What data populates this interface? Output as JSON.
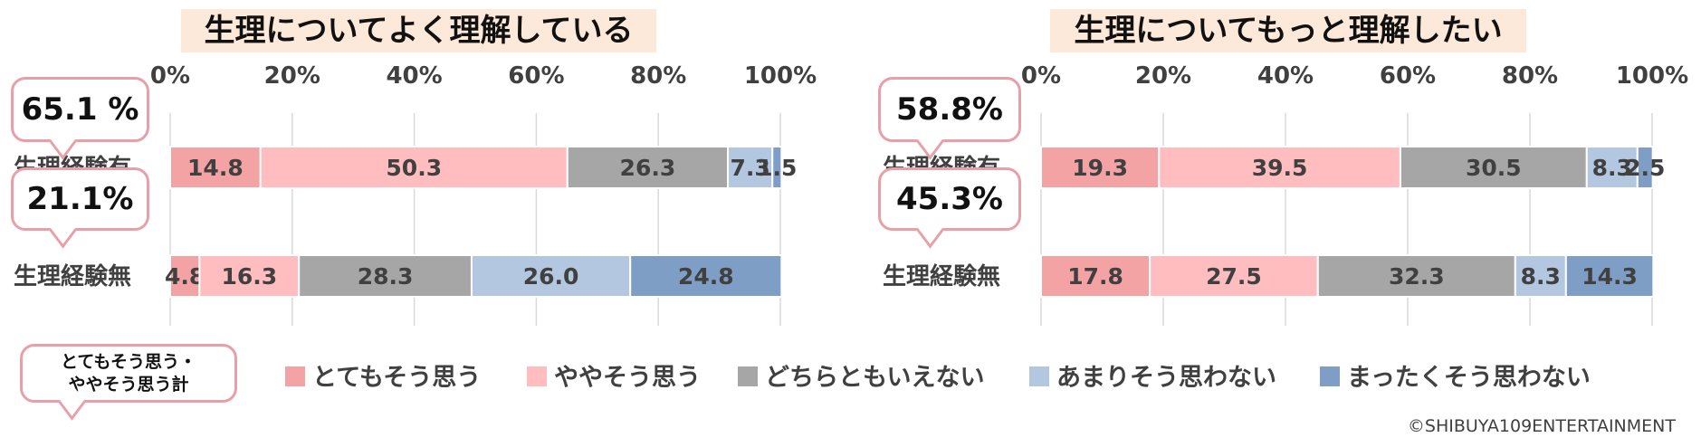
{
  "chart_data": [
    {
      "type": "bar",
      "title": "生理についてよく理解している",
      "x_ticks": [
        "0%",
        "20%",
        "40%",
        "60%",
        "80%",
        "100%"
      ],
      "xlim": [
        0,
        100
      ],
      "categories": [
        "生理経験有",
        "生理経験無"
      ],
      "series": [
        {
          "name": "とてもそう思う",
          "values": [
            14.8,
            4.8
          ]
        },
        {
          "name": "ややそう思う",
          "values": [
            50.3,
            16.3
          ]
        },
        {
          "name": "どちらともいえない",
          "values": [
            26.3,
            28.3
          ]
        },
        {
          "name": "あまりそう思わない",
          "values": [
            7.3,
            26.0
          ]
        },
        {
          "name": "まったくそう思わない",
          "values": [
            1.5,
            24.8
          ]
        }
      ],
      "value_labels": [
        [
          "14.8",
          "50.3",
          "26.3",
          "7.3",
          "1.5"
        ],
        [
          "4.8",
          "16.3",
          "28.3",
          "26.0",
          "24.8"
        ]
      ],
      "callouts": [
        "65.1 %",
        "21.1%"
      ]
    },
    {
      "type": "bar",
      "title": "生理についてもっと理解したい",
      "x_ticks": [
        "0%",
        "20%",
        "40%",
        "60%",
        "80%",
        "100%"
      ],
      "xlim": [
        0,
        100
      ],
      "categories": [
        "生理経験有",
        "生理経験無"
      ],
      "series": [
        {
          "name": "とてもそう思う",
          "values": [
            19.3,
            17.8
          ]
        },
        {
          "name": "ややそう思う",
          "values": [
            39.5,
            27.5
          ]
        },
        {
          "name": "どちらともいえない",
          "values": [
            30.5,
            32.3
          ]
        },
        {
          "name": "あまりそう思わない",
          "values": [
            8.3,
            8.3
          ]
        },
        {
          "name": "まったくそう思わない",
          "values": [
            2.5,
            14.3
          ]
        }
      ],
      "value_labels": [
        [
          "19.3",
          "39.5",
          "30.5",
          "8.3",
          "2.5"
        ],
        [
          "17.8",
          "27.5",
          "32.3",
          "8.3",
          "14.3"
        ]
      ],
      "callouts": [
        "58.8%",
        "45.3%"
      ]
    }
  ],
  "legend": {
    "callout_label": "とてもそう思う・\nややそう思う計",
    "items": [
      {
        "label": "とてもそう思う",
        "color": "#f4a3a5"
      },
      {
        "label": "ややそう思う",
        "color": "#ffbdc0"
      },
      {
        "label": "どちらともいえない",
        "color": "#a6a6a6"
      },
      {
        "label": "あまりそう思わない",
        "color": "#b4c7e0"
      },
      {
        "label": "まったくそう思わない",
        "color": "#7f9ec5"
      }
    ]
  },
  "credit": "©SHIBUYA109ENTERTAINMENT",
  "colors": {
    "title_bg": "#fde9d9",
    "grid": "#d9d9d9",
    "bubble_border": "#e8a0a8",
    "text": "#404040"
  }
}
